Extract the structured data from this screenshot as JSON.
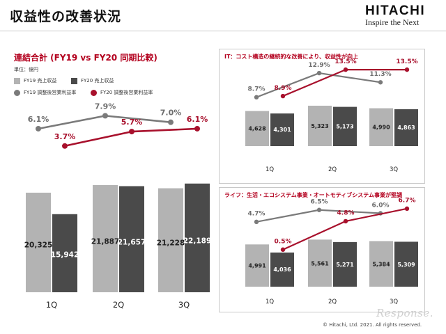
{
  "page": {
    "title": "収益性の改善状況",
    "logo_word": "HITACHI",
    "logo_tagline": "Inspire the Next",
    "copyright": "© Hitachi, Ltd. 2021. All rights reserved.",
    "watermark": "Response."
  },
  "colors": {
    "fy19_bar": "#b3b3b3",
    "fy20_bar": "#4a4a4a",
    "fy19_line": "#7a7a7a",
    "fy20_line": "#a8102c",
    "accent": "#b3001e"
  },
  "left_panel": {
    "title": "連結合計 (FY19 vs FY20 同期比較)",
    "unit": "単位：億円",
    "legend": {
      "fy19_sales": "FY19 売上収益",
      "fy20_sales": "FY20 売上収益",
      "fy19_margin": "FY19 調整後営業利益率",
      "fy20_margin": "FY20 調整後営業利益率"
    }
  },
  "it_panel": {
    "title": "IT：コスト構造の継続的な改善により、収益性が向上"
  },
  "life_panel": {
    "title": "ライフ：生活・エコシステム事業・オートモティブシステム事業が堅調"
  },
  "chart_data": [
    {
      "type": "bar",
      "title": "連結合計 (FY19 vs FY20 同期比較)",
      "categories": [
        "1Q",
        "2Q",
        "3Q"
      ],
      "series": [
        {
          "name": "FY19 売上収益",
          "values": [
            20325,
            21887,
            21228
          ],
          "labels": [
            "20,325",
            "21,887",
            "21,228"
          ]
        },
        {
          "name": "FY20 売上収益",
          "values": [
            15942,
            21657,
            22189
          ],
          "labels": [
            "15,942",
            "21,657",
            "22,189"
          ]
        }
      ],
      "lines": [
        {
          "name": "FY19 調整後営業利益率",
          "values": [
            6.1,
            7.9,
            7.0
          ],
          "labels": [
            "6.1%",
            "7.9%",
            "7.0%"
          ]
        },
        {
          "name": "FY20 調整後営業利益率",
          "values": [
            3.7,
            5.7,
            6.1
          ],
          "labels": [
            "3.7%",
            "5.7%",
            "6.1%"
          ]
        }
      ],
      "ylim": [
        0,
        25000
      ],
      "ylim_margin": [
        0,
        9
      ]
    },
    {
      "type": "bar",
      "title": "IT：コスト構造の継続的な改善により、収益性が向上",
      "categories": [
        "1Q",
        "2Q",
        "3Q"
      ],
      "series": [
        {
          "name": "FY19 売上収益",
          "values": [
            4628,
            5323,
            4990
          ],
          "labels": [
            "4,628",
            "5,323",
            "4,990"
          ]
        },
        {
          "name": "FY20 売上収益",
          "values": [
            4301,
            5173,
            4863
          ],
          "labels": [
            "4,301",
            "5,173",
            "4,863"
          ]
        }
      ],
      "lines": [
        {
          "name": "FY19 調整後営業利益率",
          "values": [
            8.7,
            12.9,
            11.3
          ],
          "labels": [
            "8.7%",
            "12.9%",
            "11.3%"
          ]
        },
        {
          "name": "FY20 調整後営業利益率",
          "values": [
            8.9,
            13.5,
            13.5
          ],
          "labels": [
            "8.9%",
            "13.5%",
            "13.5%"
          ]
        }
      ],
      "ylim": [
        0,
        5500
      ],
      "ylim_margin": [
        6,
        14
      ]
    },
    {
      "type": "bar",
      "title": "ライフ：生活・エコシステム事業・オートモティブシステム事業が堅調",
      "categories": [
        "1Q",
        "2Q",
        "3Q"
      ],
      "series": [
        {
          "name": "FY19 売上収益",
          "values": [
            4991,
            5561,
            5384
          ],
          "labels": [
            "4,991",
            "5,561",
            "5,384"
          ]
        },
        {
          "name": "FY20 売上収益",
          "values": [
            4036,
            5271,
            5309
          ],
          "labels": [
            "4,036",
            "5,271",
            "5,309"
          ]
        }
      ],
      "lines": [
        {
          "name": "FY19 調整後営業利益率",
          "values": [
            4.7,
            6.5,
            6.0
          ],
          "labels": [
            "4.7%",
            "6.5%",
            "6.0%"
          ]
        },
        {
          "name": "FY20 調整後営業利益率",
          "values": [
            0.5,
            4.8,
            6.7
          ],
          "labels": [
            "0.5%",
            "4.8%",
            "6.7%"
          ]
        }
      ],
      "ylim": [
        0,
        6000
      ],
      "ylim_margin": [
        -1,
        7
      ]
    }
  ]
}
